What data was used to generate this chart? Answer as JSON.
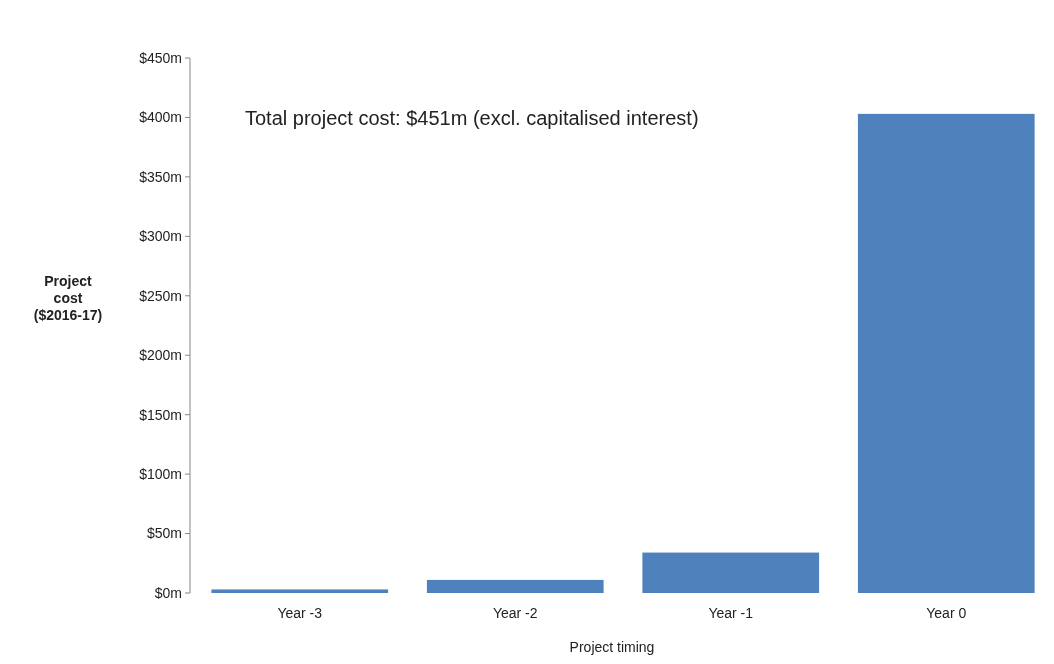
{
  "chart_data": {
    "type": "bar",
    "xlabel": "Project timing",
    "ylabel": "Project\ncost\n($2016-17)",
    "categories": [
      "Year -3",
      "Year -2",
      "Year -1",
      "Year 0"
    ],
    "values": [
      3,
      11,
      34,
      403
    ],
    "color": "#4f81bd",
    "ylim": [
      0,
      450
    ],
    "yticks": [
      {
        "value": 0,
        "label": "$0m"
      },
      {
        "value": 50,
        "label": "$50m"
      },
      {
        "value": 100,
        "label": "$100m"
      },
      {
        "value": 150,
        "label": "$150m"
      },
      {
        "value": 200,
        "label": "$200m"
      },
      {
        "value": 250,
        "label": "$250m"
      },
      {
        "value": 300,
        "label": "$300m"
      },
      {
        "value": 350,
        "label": "$350m"
      },
      {
        "value": 400,
        "label": "$400m"
      },
      {
        "value": 450,
        "label": "$450m"
      }
    ],
    "annotations": [
      "Total project cost: $451m (excl. capitalised interest)"
    ],
    "grid": false
  }
}
